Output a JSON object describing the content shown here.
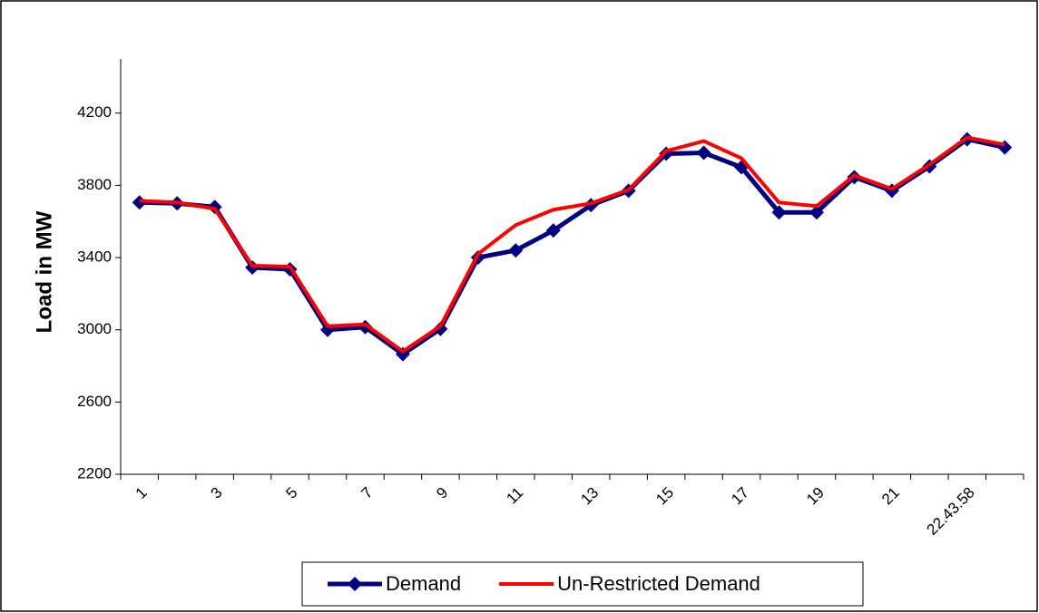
{
  "chart_data": {
    "type": "line",
    "y_label": "Load in MW",
    "categories": [
      "1",
      null,
      "3",
      null,
      "5",
      null,
      "7",
      null,
      "9",
      null,
      "11",
      null,
      "13",
      null,
      "15",
      null,
      "17",
      null,
      "19",
      null,
      "21",
      null,
      "22.43.58",
      null
    ],
    "series": [
      {
        "name": "Demand",
        "color": "#000080",
        "marker": "diamond",
        "values": [
          3705,
          3700,
          3680,
          3345,
          3335,
          3000,
          3015,
          2865,
          3005,
          3400,
          3440,
          3550,
          3690,
          3770,
          3975,
          3980,
          3900,
          3650,
          3650,
          3845,
          3770,
          3905,
          4055,
          4010
        ]
      },
      {
        "name": "Un-Restricted Demand",
        "color": "#ff0000",
        "values": [
          3715,
          3705,
          3670,
          3355,
          3350,
          3020,
          3030,
          2880,
          3020,
          3420,
          3580,
          3665,
          3700,
          3775,
          3990,
          4045,
          3950,
          3705,
          3685,
          3855,
          3780,
          3915,
          4065,
          4025
        ]
      }
    ],
    "ylim": [
      2200,
      4500
    ],
    "yticks": [
      2200,
      2600,
      3000,
      3400,
      3800,
      4200
    ],
    "grid": false,
    "legend": "bottom"
  }
}
